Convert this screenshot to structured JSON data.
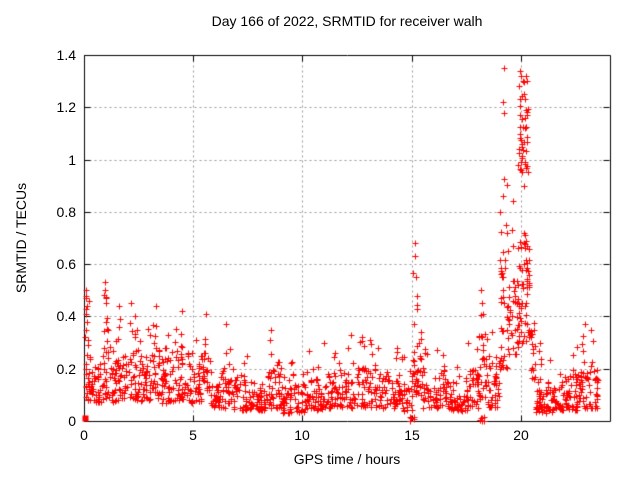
{
  "figure": {
    "background": "#ffffff",
    "border_color": "#000000",
    "text_color": "#000000"
  },
  "chart_data": {
    "type": "scatter",
    "title": "Day 166 of 2022, SRMTID for receiver walh",
    "xlabel": "GPS time / hours",
    "ylabel": "SRMTID / TECUs",
    "xlim": [
      0,
      24
    ],
    "ylim": [
      0,
      1.4
    ],
    "xticks": [
      {
        "value": 0,
        "label": "0"
      },
      {
        "value": 5,
        "label": "5"
      },
      {
        "value": 10,
        "label": "10"
      },
      {
        "value": 15,
        "label": "15"
      },
      {
        "value": 20,
        "label": "20"
      }
    ],
    "yticks": [
      {
        "value": 0,
        "label": "0"
      },
      {
        "value": 0.2,
        "label": "0.2"
      },
      {
        "value": 0.4,
        "label": "0.4"
      },
      {
        "value": 0.6,
        "label": "0.6"
      },
      {
        "value": 0.8,
        "label": "0.8"
      },
      {
        "value": 1,
        "label": "1"
      },
      {
        "value": 1.2,
        "label": "1.2"
      },
      {
        "value": 1.4,
        "label": "1.4"
      }
    ],
    "grid": {
      "visible": true,
      "style": "dashed",
      "color": "#999999"
    },
    "legend": {
      "visible": false
    },
    "marker": {
      "shape": "plus",
      "color": "#ff0000",
      "size": 7
    },
    "origin_marker": {
      "shape": "filled-square",
      "x": 0.05,
      "y": 0.01,
      "size": 6
    },
    "notable_points": [
      [
        0.1,
        0.5
      ],
      [
        0.12,
        0.47
      ],
      [
        0.15,
        0.44
      ],
      [
        0.13,
        0.41
      ],
      [
        0.18,
        0.38
      ],
      [
        0.1,
        0.35
      ],
      [
        0.22,
        0.31
      ],
      [
        0.98,
        0.53
      ],
      [
        1.0,
        0.5
      ],
      [
        1.02,
        0.47
      ],
      [
        1.05,
        0.45
      ],
      [
        1.6,
        0.44
      ],
      [
        2.15,
        0.45
      ],
      [
        3.3,
        0.44
      ],
      [
        4.5,
        0.42
      ],
      [
        5.6,
        0.41
      ],
      [
        6.5,
        0.37
      ],
      [
        8.55,
        0.35
      ],
      [
        11.0,
        0.3
      ],
      [
        12.2,
        0.33
      ],
      [
        13.1,
        0.31
      ],
      [
        14.3,
        0.28
      ],
      [
        15.12,
        0.68
      ],
      [
        15.15,
        0.63
      ],
      [
        15.18,
        0.55
      ],
      [
        15.22,
        0.48
      ],
      [
        15.25,
        0.43
      ],
      [
        17.55,
        0.3
      ],
      [
        18.15,
        0.5
      ],
      [
        18.2,
        0.45
      ],
      [
        18.25,
        0.41
      ],
      [
        19.2,
        1.35
      ],
      [
        19.18,
        1.22
      ],
      [
        19.22,
        1.18
      ],
      [
        19.15,
        0.86
      ],
      [
        19.28,
        0.75
      ],
      [
        19.32,
        0.72
      ],
      [
        19.9,
        1.28
      ],
      [
        19.93,
        1.34
      ],
      [
        20.0,
        1.32
      ],
      [
        20.05,
        1.3
      ],
      [
        20.1,
        0.68
      ],
      [
        20.15,
        0.66
      ],
      [
        20.85,
        0.3
      ],
      [
        22.9,
        0.37
      ],
      [
        23.2,
        0.35
      ]
    ],
    "density_bands_format": "[hour_start, hour_end, count, y_low, y_high, y_max]",
    "density_bands": [
      [
        0.05,
        0.35,
        30,
        0.08,
        0.3,
        0.5
      ],
      [
        0.35,
        0.85,
        35,
        0.07,
        0.22,
        0.35
      ],
      [
        0.85,
        1.2,
        30,
        0.08,
        0.3,
        0.5
      ],
      [
        1.2,
        2.0,
        55,
        0.07,
        0.25,
        0.42
      ],
      [
        2.0,
        2.6,
        40,
        0.08,
        0.28,
        0.44
      ],
      [
        2.6,
        3.1,
        35,
        0.07,
        0.25,
        0.38
      ],
      [
        3.1,
        3.6,
        35,
        0.08,
        0.28,
        0.43
      ],
      [
        3.6,
        4.3,
        45,
        0.07,
        0.25,
        0.38
      ],
      [
        4.3,
        4.8,
        35,
        0.08,
        0.28,
        0.42
      ],
      [
        4.8,
        5.4,
        40,
        0.07,
        0.22,
        0.33
      ],
      [
        5.4,
        5.8,
        28,
        0.08,
        0.26,
        0.4
      ],
      [
        5.8,
        6.6,
        50,
        0.05,
        0.2,
        0.36
      ],
      [
        6.6,
        7.6,
        60,
        0.04,
        0.16,
        0.3
      ],
      [
        7.6,
        8.4,
        50,
        0.04,
        0.15,
        0.26
      ],
      [
        8.4,
        9.0,
        40,
        0.05,
        0.2,
        0.33
      ],
      [
        9.0,
        10.2,
        70,
        0.03,
        0.14,
        0.24
      ],
      [
        10.2,
        11.2,
        60,
        0.04,
        0.16,
        0.29
      ],
      [
        11.2,
        12.4,
        70,
        0.05,
        0.18,
        0.32
      ],
      [
        12.4,
        13.4,
        60,
        0.05,
        0.2,
        0.33
      ],
      [
        13.4,
        14.6,
        70,
        0.05,
        0.18,
        0.29
      ],
      [
        14.6,
        15.05,
        25,
        0.04,
        0.16,
        0.25
      ],
      [
        14.85,
        15.1,
        5,
        0.0,
        0.02,
        0.03
      ],
      [
        15.05,
        15.45,
        35,
        0.1,
        0.35,
        0.66
      ],
      [
        15.45,
        16.6,
        65,
        0.05,
        0.18,
        0.28
      ],
      [
        16.6,
        17.6,
        60,
        0.04,
        0.15,
        0.25
      ],
      [
        17.6,
        18.05,
        30,
        0.05,
        0.2,
        0.32
      ],
      [
        18.05,
        18.45,
        30,
        0.08,
        0.35,
        0.5
      ],
      [
        18.05,
        18.35,
        7,
        0.0,
        0.015,
        0.02
      ],
      [
        18.45,
        19.0,
        40,
        0.05,
        0.22,
        0.35
      ],
      [
        19.0,
        19.4,
        40,
        0.2,
        0.65,
        1.0
      ],
      [
        19.4,
        19.85,
        35,
        0.25,
        0.6,
        0.92
      ],
      [
        19.85,
        20.35,
        55,
        0.3,
        0.7,
        1.0
      ],
      [
        19.9,
        20.3,
        45,
        0.95,
        1.25,
        1.33
      ],
      [
        20.35,
        20.65,
        20,
        0.15,
        0.35,
        0.5
      ],
      [
        20.65,
        21.6,
        65,
        0.03,
        0.15,
        0.28
      ],
      [
        21.6,
        22.6,
        65,
        0.04,
        0.18,
        0.32
      ],
      [
        22.6,
        23.5,
        60,
        0.05,
        0.2,
        0.37
      ]
    ],
    "seed": 20220166,
    "tail_probability": 0.1
  }
}
